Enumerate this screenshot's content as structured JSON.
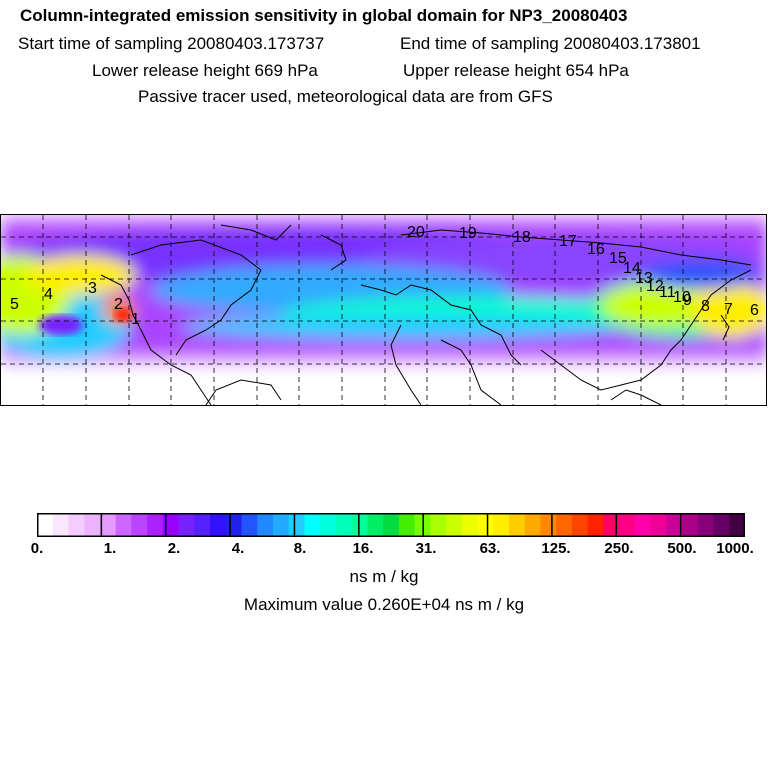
{
  "header": {
    "title": "Column-integrated emission sensitivity in global domain for NP3_20080403",
    "start_label": "Start time of sampling 20080403.173737",
    "end_label": "End time of sampling 20080403.173801",
    "lower_label": "Lower release height  669 hPa",
    "upper_label": "Upper release height  654 hPa",
    "note": "Passive tracer used, meteorological data are from GFS"
  },
  "map": {
    "trajectory_labels": [
      "1",
      "2",
      "3",
      "4",
      "5",
      "6",
      "7",
      "8",
      "9",
      "10",
      "11",
      "12",
      "13",
      "14",
      "15",
      "16",
      "17",
      "18",
      "19",
      "20"
    ]
  },
  "colorbar": {
    "tick_labels": [
      "0.",
      "1.",
      "2.",
      "4.",
      "8.",
      "16.",
      "31.",
      "63.",
      "125.",
      "250.",
      "500.",
      "1000."
    ],
    "colors": [
      "#ffffff",
      "#fbe6ff",
      "#f5ccff",
      "#eeb3ff",
      "#e699ff",
      "#cc66ff",
      "#bb44ff",
      "#aa22ff",
      "#9900ff",
      "#7722ff",
      "#5522ff",
      "#3311ff",
      "#2222ee",
      "#2255ff",
      "#2288ff",
      "#22aaff",
      "#22ccff",
      "#00ffff",
      "#00ffdd",
      "#00ffbb",
      "#00ff99",
      "#00ee66",
      "#00dd44",
      "#44ee00",
      "#77ff00",
      "#aaff00",
      "#ccff00",
      "#eeff00",
      "#ffff00",
      "#ffee00",
      "#ffcc00",
      "#ffaa00",
      "#ff8800",
      "#ff6600",
      "#ff4400",
      "#ff2200",
      "#ff0066",
      "#ff0088",
      "#ff00aa",
      "#ee0099",
      "#cc0099",
      "#aa0088",
      "#880077",
      "#660066",
      "#440044"
    ],
    "unit": "ns m / kg",
    "max_value_text": "Maximum value  0.260E+04 ns m / kg"
  }
}
